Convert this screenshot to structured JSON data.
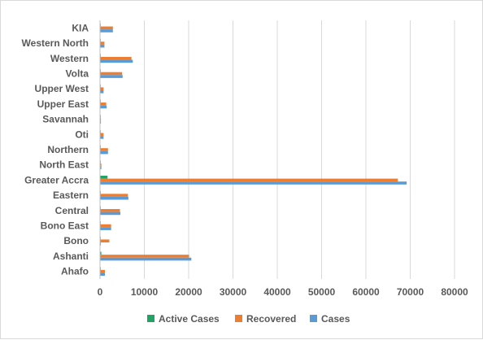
{
  "chart_data": {
    "type": "bar",
    "orientation": "horizontal",
    "title": "",
    "xlabel": "",
    "ylabel": "",
    "xlim": [
      0,
      80000
    ],
    "x_ticks": [
      "0",
      "10000",
      "20000",
      "30000",
      "40000",
      "50000",
      "60000",
      "70000",
      "80000"
    ],
    "grid": "vertical",
    "legend": "bottom",
    "categories": [
      "KIA",
      "Western North",
      "Western",
      "Volta",
      "Upper West",
      "Upper East",
      "Savannah",
      "Oti",
      "Northern",
      "North East",
      "Greater Accra",
      "Eastern",
      "Central",
      "Bono East",
      "Bono",
      "Ashanti",
      "Ahafo"
    ],
    "series": [
      {
        "name": "Active Cases",
        "color": "#21a366",
        "values": [
          40,
          30,
          100,
          60,
          20,
          30,
          10,
          20,
          30,
          10,
          1700,
          80,
          60,
          40,
          30,
          300,
          20
        ]
      },
      {
        "name": "Recovered",
        "color": "#ed7d31",
        "values": [
          2900,
          1000,
          7100,
          5000,
          800,
          1400,
          200,
          800,
          1800,
          300,
          67200,
          6300,
          4500,
          2500,
          2100,
          20100,
          1100
        ]
      },
      {
        "name": "Cases",
        "color": "#5b9bd5",
        "values": [
          2900,
          1000,
          7400,
          5100,
          800,
          1500,
          200,
          800,
          1800,
          300,
          69200,
          6400,
          4600,
          2500,
          200,
          20600,
          1100
        ]
      }
    ]
  }
}
